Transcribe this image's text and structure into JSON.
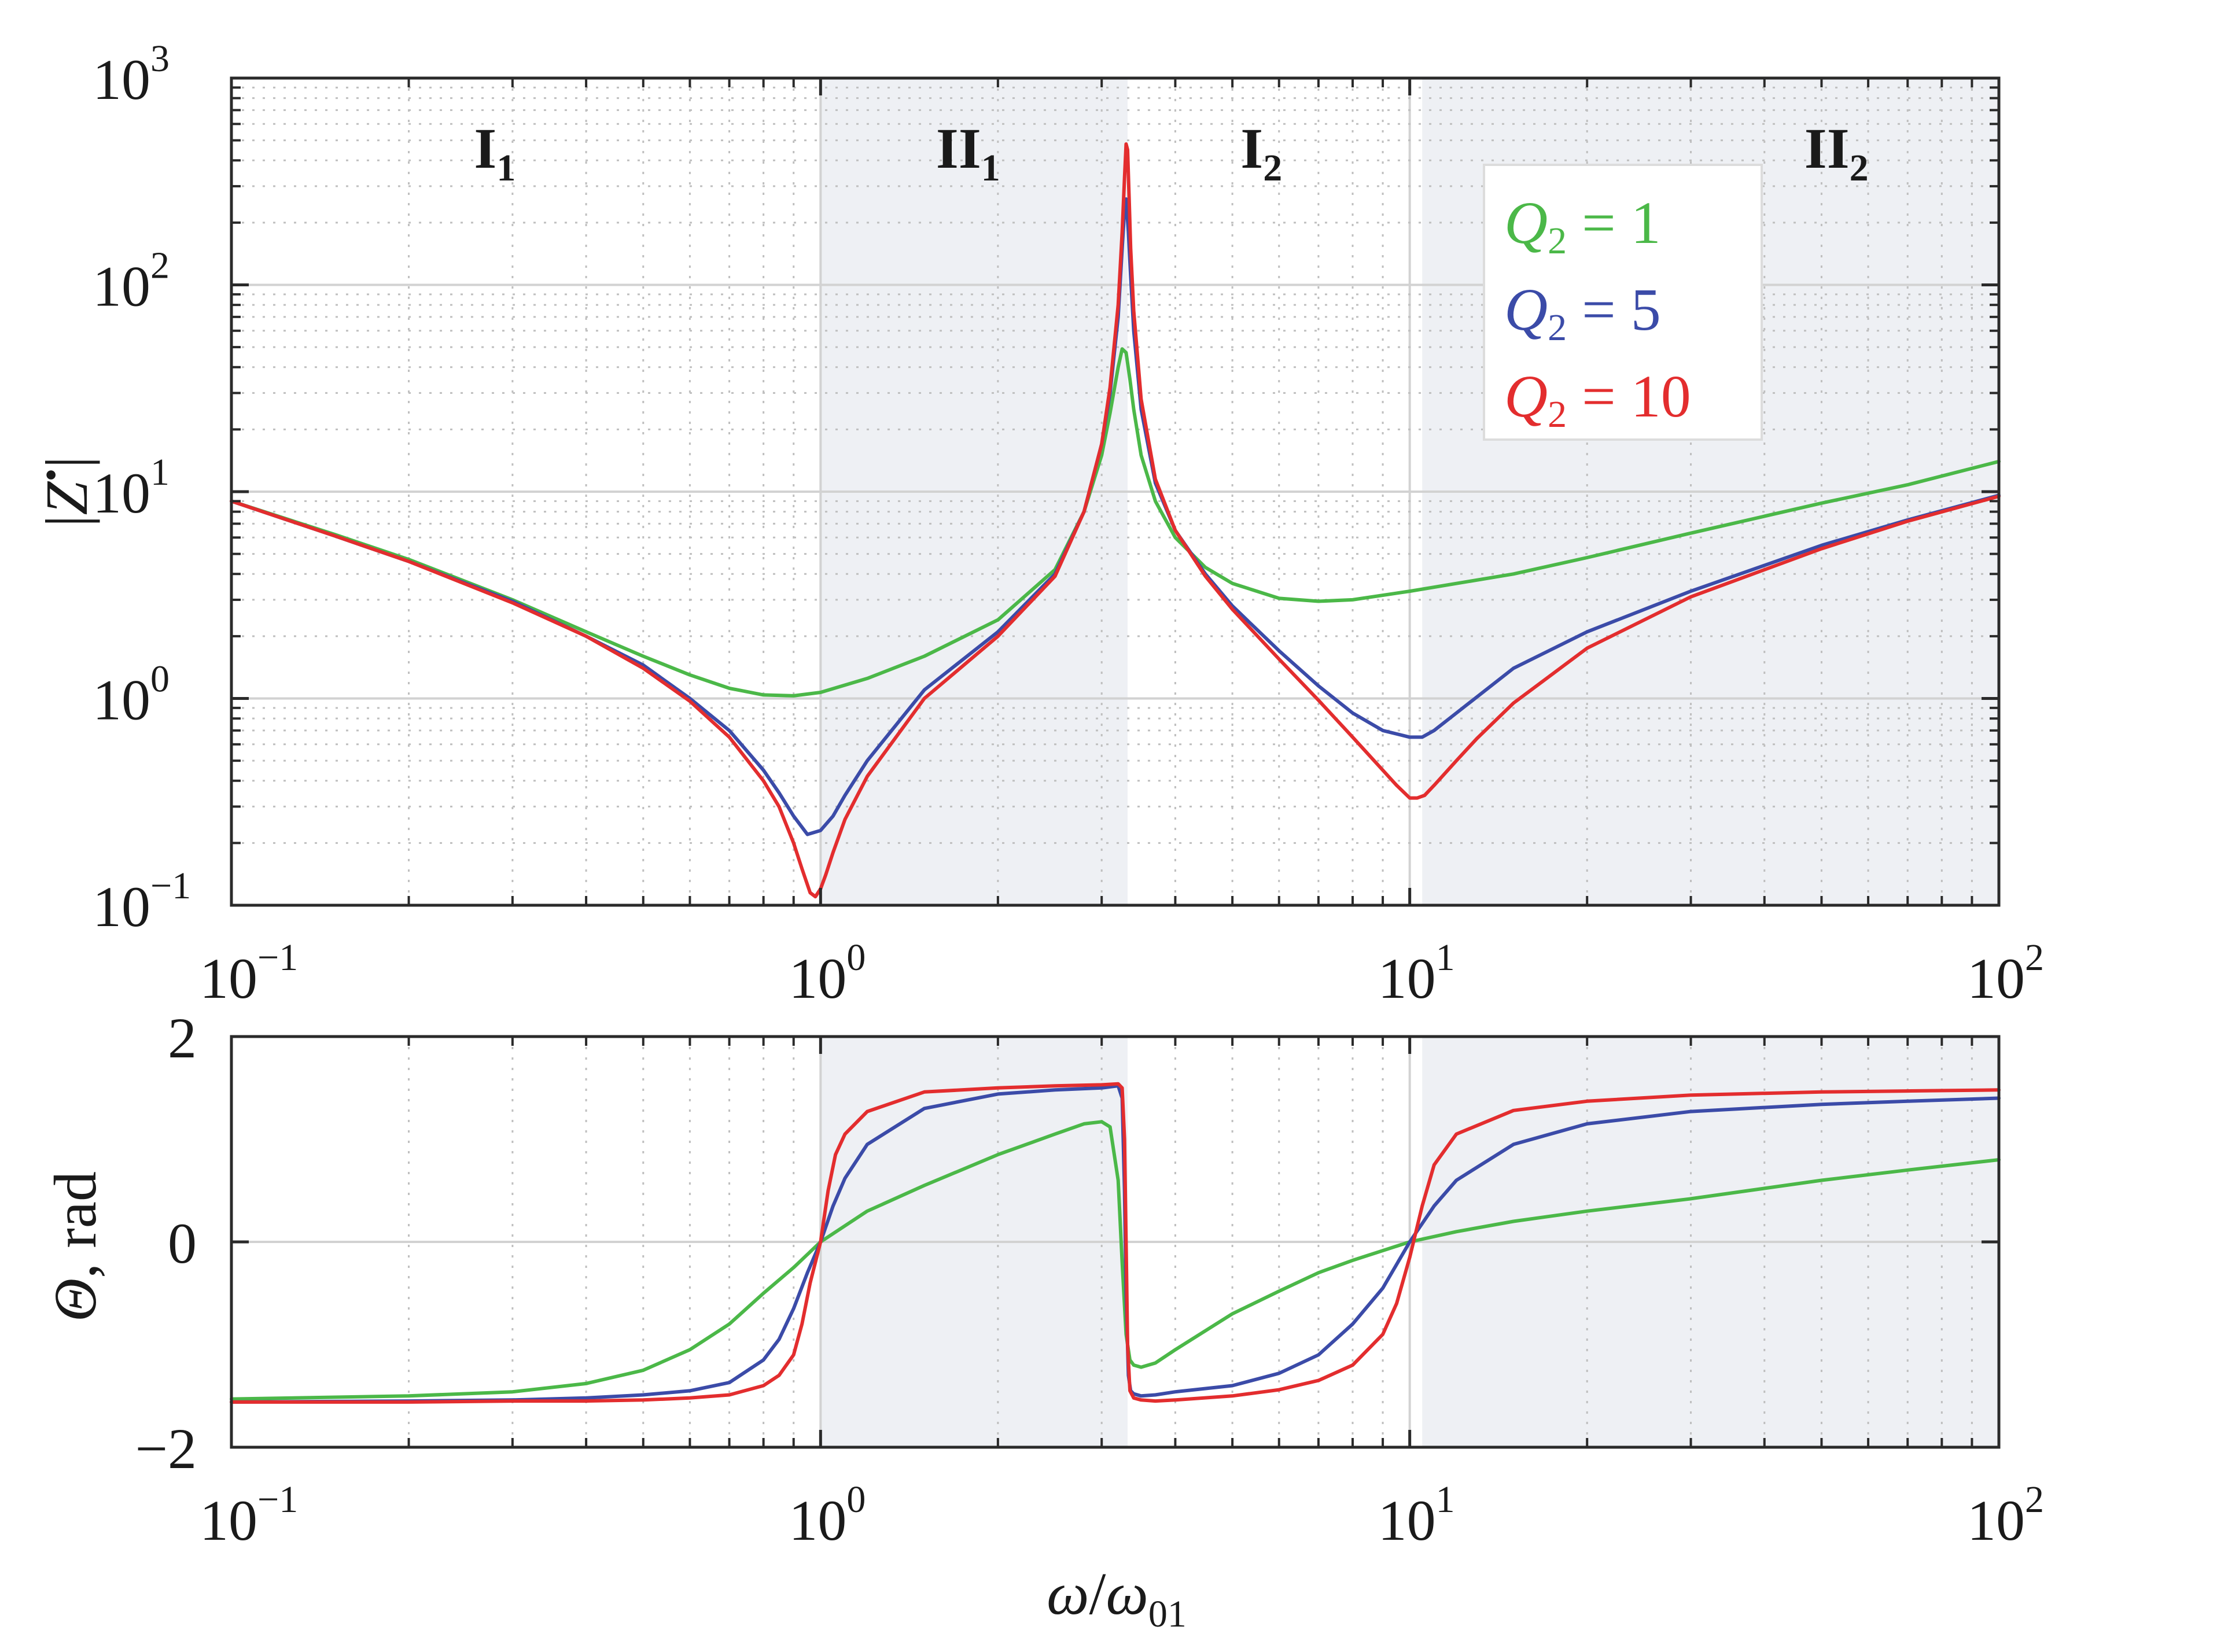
{
  "chart_data": [
    {
      "type": "line",
      "id": "magnitude",
      "xscale": "log",
      "yscale": "log",
      "xlim": [
        0.1,
        100
      ],
      "ylim": [
        0.1,
        1000
      ],
      "xlabel": "",
      "ylabel": "|Z•|",
      "grid": true,
      "x_ticks": [
        {
          "base": "10",
          "exp": "−1"
        },
        {
          "base": "10",
          "exp": "0"
        },
        {
          "base": "10",
          "exp": "1"
        },
        {
          "base": "10",
          "exp": "2"
        }
      ],
      "y_ticks": [
        {
          "base": "10",
          "exp": "−1"
        },
        {
          "base": "10",
          "exp": "0"
        },
        {
          "base": "10",
          "exp": "1"
        },
        {
          "base": "10",
          "exp": "2"
        },
        {
          "base": "10",
          "exp": "3"
        }
      ],
      "regions": [
        {
          "name": "I1",
          "text": "I",
          "sub": "1",
          "from": 0.1,
          "to": 1.0,
          "shaded": false
        },
        {
          "name": "II1",
          "text": "II",
          "sub": "1",
          "from": 1.0,
          "to": 3.32,
          "shaded": true
        },
        {
          "name": "I2",
          "text": "I",
          "sub": "2",
          "from": 3.32,
          "to": 10.5,
          "shaded": false
        },
        {
          "name": "II2",
          "text": "II",
          "sub": "2",
          "from": 10.5,
          "to": 100,
          "shaded": true
        }
      ],
      "series": [
        {
          "name": "Q2 = 1",
          "color": "#4bb848",
          "x": [
            0.1,
            0.15,
            0.2,
            0.3,
            0.4,
            0.5,
            0.6,
            0.7,
            0.8,
            0.9,
            1.0,
            1.2,
            1.5,
            2.0,
            2.5,
            2.8,
            3.0,
            3.1,
            3.2,
            3.25,
            3.3,
            3.35,
            3.4,
            3.5,
            3.7,
            4.0,
            4.5,
            5.0,
            6.0,
            7.0,
            8.0,
            10.0,
            15.0,
            20.0,
            30.0,
            50.0,
            70.0,
            100.0
          ],
          "values": [
            9.0,
            6.2,
            4.7,
            3.0,
            2.1,
            1.6,
            1.3,
            1.12,
            1.04,
            1.03,
            1.07,
            1.25,
            1.6,
            2.4,
            4.2,
            8.0,
            15.0,
            24.0,
            40.0,
            49.0,
            47.0,
            35.0,
            25.0,
            15.0,
            9.0,
            6.0,
            4.3,
            3.6,
            3.05,
            2.95,
            3.0,
            3.3,
            4.0,
            4.8,
            6.3,
            8.8,
            10.8,
            14.0
          ]
        },
        {
          "name": "Q2 = 5",
          "color": "#3b4ba8",
          "x": [
            0.1,
            0.15,
            0.2,
            0.3,
            0.4,
            0.5,
            0.6,
            0.7,
            0.8,
            0.85,
            0.9,
            0.95,
            1.0,
            1.05,
            1.1,
            1.2,
            1.5,
            2.0,
            2.5,
            2.8,
            3.0,
            3.1,
            3.2,
            3.25,
            3.28,
            3.3,
            3.33,
            3.36,
            3.4,
            3.5,
            3.7,
            4.0,
            4.5,
            5.0,
            6.0,
            7.0,
            8.0,
            9.0,
            10.0,
            10.5,
            11.0,
            12.0,
            15.0,
            20.0,
            30.0,
            50.0,
            70.0,
            100.0
          ],
          "values": [
            9.0,
            6.1,
            4.6,
            2.95,
            2.0,
            1.45,
            1.0,
            0.7,
            0.45,
            0.35,
            0.27,
            0.22,
            0.23,
            0.27,
            0.34,
            0.5,
            1.1,
            2.1,
            4.0,
            8.0,
            17.0,
            30.0,
            70.0,
            150.0,
            230.0,
            260.0,
            180.0,
            110.0,
            60.0,
            25.0,
            11.0,
            6.5,
            4.0,
            2.8,
            1.7,
            1.15,
            0.85,
            0.7,
            0.65,
            0.65,
            0.7,
            0.85,
            1.4,
            2.1,
            3.3,
            5.5,
            7.3,
            9.6
          ]
        },
        {
          "name": "Q2 = 10",
          "color": "#e32d2e",
          "x": [
            0.1,
            0.15,
            0.2,
            0.3,
            0.4,
            0.5,
            0.6,
            0.7,
            0.8,
            0.85,
            0.9,
            0.93,
            0.96,
            0.98,
            1.0,
            1.02,
            1.05,
            1.1,
            1.2,
            1.5,
            2.0,
            2.5,
            2.8,
            3.0,
            3.1,
            3.2,
            3.25,
            3.28,
            3.3,
            3.32,
            3.34,
            3.36,
            3.4,
            3.5,
            3.7,
            4.0,
            4.5,
            5.0,
            6.0,
            7.0,
            8.0,
            9.0,
            9.5,
            10.0,
            10.3,
            10.6,
            11.0,
            12.0,
            13.0,
            15.0,
            20.0,
            30.0,
            50.0,
            70.0,
            100.0
          ],
          "values": [
            9.0,
            6.1,
            4.6,
            2.9,
            2.0,
            1.4,
            0.97,
            0.65,
            0.4,
            0.3,
            0.2,
            0.15,
            0.115,
            0.11,
            0.12,
            0.14,
            0.18,
            0.26,
            0.42,
            1.0,
            2.0,
            3.9,
            8.0,
            17.0,
            32.0,
            80.0,
            180.0,
            330.0,
            480.0,
            450.0,
            260.0,
            150.0,
            75.0,
            28.0,
            11.5,
            6.5,
            3.9,
            2.7,
            1.55,
            0.98,
            0.65,
            0.45,
            0.38,
            0.33,
            0.33,
            0.34,
            0.38,
            0.5,
            0.64,
            0.95,
            1.75,
            3.1,
            5.3,
            7.2,
            9.5
          ]
        }
      ],
      "legend": {
        "position": "top-right",
        "entries": [
          {
            "q": "Q",
            "sub": "2",
            "rest": " = 1",
            "color": "#4bb848"
          },
          {
            "q": "Q",
            "sub": "2",
            "rest": " = 5",
            "color": "#3b4ba8"
          },
          {
            "q": "Q",
            "sub": "2",
            "rest": " = 10",
            "color": "#e32d2e"
          }
        ]
      }
    },
    {
      "type": "line",
      "id": "phase",
      "xscale": "log",
      "yscale": "linear",
      "xlim": [
        0.1,
        100
      ],
      "ylim": [
        -2,
        2
      ],
      "xlabel": "ω/ω01",
      "ylabel": "Θ, rad",
      "grid": true,
      "x_ticks": [
        {
          "base": "10",
          "exp": "−1"
        },
        {
          "base": "10",
          "exp": "0"
        },
        {
          "base": "10",
          "exp": "1"
        },
        {
          "base": "10",
          "exp": "2"
        }
      ],
      "y_ticks": [
        "−2",
        "0",
        "2"
      ],
      "series": [
        {
          "name": "Q2 = 1",
          "color": "#4bb848",
          "x": [
            0.1,
            0.2,
            0.3,
            0.4,
            0.5,
            0.6,
            0.7,
            0.8,
            0.9,
            1.0,
            1.2,
            1.5,
            2.0,
            2.5,
            2.8,
            3.0,
            3.1,
            3.2,
            3.25,
            3.3,
            3.35,
            3.4,
            3.5,
            3.7,
            4.0,
            5.0,
            6.0,
            7.0,
            8.0,
            10.0,
            12.0,
            15.0,
            20.0,
            30.0,
            50.0,
            70.0,
            100.0
          ],
          "values": [
            -1.53,
            -1.5,
            -1.46,
            -1.38,
            -1.25,
            -1.05,
            -0.8,
            -0.5,
            -0.25,
            0.0,
            0.3,
            0.55,
            0.85,
            1.05,
            1.15,
            1.17,
            1.12,
            0.6,
            -0.2,
            -0.9,
            -1.15,
            -1.2,
            -1.22,
            -1.18,
            -1.05,
            -0.7,
            -0.48,
            -0.3,
            -0.18,
            0.0,
            0.1,
            0.2,
            0.3,
            0.42,
            0.6,
            0.7,
            0.8
          ]
        },
        {
          "name": "Q2 = 5",
          "color": "#3b4ba8",
          "x": [
            0.1,
            0.2,
            0.3,
            0.4,
            0.5,
            0.6,
            0.7,
            0.8,
            0.85,
            0.9,
            0.95,
            1.0,
            1.05,
            1.1,
            1.2,
            1.5,
            2.0,
            2.5,
            3.0,
            3.2,
            3.25,
            3.28,
            3.3,
            3.33,
            3.36,
            3.4,
            3.5,
            3.7,
            4.0,
            5.0,
            6.0,
            7.0,
            8.0,
            9.0,
            10.0,
            11.0,
            12.0,
            15.0,
            20.0,
            30.0,
            50.0,
            70.0,
            100.0
          ],
          "values": [
            -1.56,
            -1.55,
            -1.54,
            -1.52,
            -1.49,
            -1.45,
            -1.37,
            -1.15,
            -0.95,
            -0.65,
            -0.3,
            0.0,
            0.35,
            0.62,
            0.95,
            1.3,
            1.44,
            1.48,
            1.5,
            1.52,
            1.4,
            0.5,
            -0.5,
            -1.3,
            -1.45,
            -1.48,
            -1.5,
            -1.49,
            -1.46,
            -1.4,
            -1.28,
            -1.1,
            -0.8,
            -0.45,
            0.0,
            0.35,
            0.6,
            0.95,
            1.15,
            1.27,
            1.34,
            1.37,
            1.4
          ]
        },
        {
          "name": "Q2 = 10",
          "color": "#e32d2e",
          "x": [
            0.1,
            0.2,
            0.3,
            0.4,
            0.5,
            0.6,
            0.7,
            0.8,
            0.85,
            0.9,
            0.93,
            0.96,
            1.0,
            1.03,
            1.06,
            1.1,
            1.2,
            1.5,
            2.0,
            2.5,
            3.0,
            3.2,
            3.25,
            3.28,
            3.3,
            3.32,
            3.35,
            3.4,
            3.5,
            3.7,
            4.0,
            5.0,
            6.0,
            7.0,
            8.0,
            9.0,
            9.5,
            10.0,
            10.5,
            11.0,
            12.0,
            15.0,
            20.0,
            30.0,
            50.0,
            70.0,
            100.0
          ],
          "values": [
            -1.56,
            -1.56,
            -1.55,
            -1.55,
            -1.54,
            -1.52,
            -1.49,
            -1.4,
            -1.3,
            -1.1,
            -0.8,
            -0.4,
            0.0,
            0.5,
            0.85,
            1.05,
            1.27,
            1.46,
            1.5,
            1.52,
            1.53,
            1.54,
            1.5,
            1.0,
            0.0,
            -1.0,
            -1.45,
            -1.52,
            -1.54,
            -1.55,
            -1.54,
            -1.5,
            -1.44,
            -1.35,
            -1.2,
            -0.9,
            -0.6,
            -0.15,
            0.35,
            0.75,
            1.05,
            1.28,
            1.37,
            1.43,
            1.46,
            1.47,
            1.48
          ]
        }
      ]
    }
  ]
}
